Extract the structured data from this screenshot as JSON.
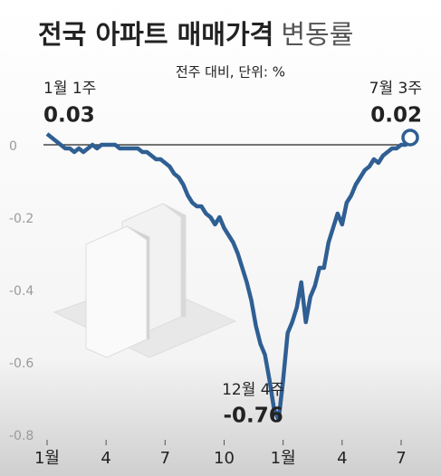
{
  "chart_data": {
    "type": "line",
    "title": "전국 아파트 매매가격",
    "title_light": "변동률",
    "subtitle": "전주 대비, 단위: %",
    "categories": [
      "1월",
      null,
      null,
      null,
      null,
      null,
      null,
      null,
      null,
      null,
      null,
      null,
      null,
      "4",
      null,
      null,
      null,
      null,
      null,
      null,
      null,
      null,
      null,
      null,
      null,
      null,
      "7",
      null,
      null,
      null,
      null,
      null,
      null,
      null,
      null,
      null,
      null,
      null,
      null,
      "10",
      null,
      null,
      null,
      null,
      null,
      null,
      null,
      null,
      null,
      null,
      null,
      null,
      "1월",
      null,
      null,
      null,
      null,
      null,
      null,
      null,
      null,
      null,
      null,
      null,
      null,
      "4",
      null,
      null,
      null,
      null,
      null,
      null,
      null,
      null,
      null,
      null,
      null,
      null,
      "7",
      null,
      null
    ],
    "series": [
      {
        "name": "변동률",
        "color": "#2f5f93",
        "values": [
          0.03,
          0.02,
          0.01,
          0.0,
          -0.01,
          -0.01,
          -0.02,
          -0.01,
          -0.02,
          -0.01,
          0.0,
          -0.01,
          0.0,
          0.0,
          0.0,
          0.0,
          -0.01,
          -0.01,
          -0.01,
          -0.01,
          -0.01,
          -0.02,
          -0.02,
          -0.03,
          -0.04,
          -0.04,
          -0.05,
          -0.06,
          -0.08,
          -0.09,
          -0.11,
          -0.14,
          -0.16,
          -0.17,
          -0.17,
          -0.19,
          -0.2,
          -0.22,
          -0.2,
          -0.23,
          -0.25,
          -0.27,
          -0.3,
          -0.34,
          -0.38,
          -0.43,
          -0.5,
          -0.55,
          -0.58,
          -0.65,
          -0.73,
          -0.76,
          -0.65,
          -0.52,
          -0.49,
          -0.45,
          -0.38,
          -0.49,
          -0.42,
          -0.39,
          -0.34,
          -0.34,
          -0.27,
          -0.23,
          -0.19,
          -0.22,
          -0.16,
          -0.14,
          -0.11,
          -0.09,
          -0.07,
          -0.06,
          -0.04,
          -0.05,
          -0.03,
          -0.02,
          -0.01,
          -0.01,
          0.0,
          0.0,
          0.02
        ],
        "point_labels": {
          "0": "1월 1주",
          "51": "12월 4주",
          "80": "7월 3주"
        },
        "value_labels": {
          "0": "0.03",
          "51": "-0.76",
          "80": "0.02"
        }
      }
    ],
    "ylim": [
      -0.82,
      0.05
    ],
    "yticks": [
      0,
      -0.2,
      -0.4,
      -0.6,
      -0.8
    ]
  }
}
